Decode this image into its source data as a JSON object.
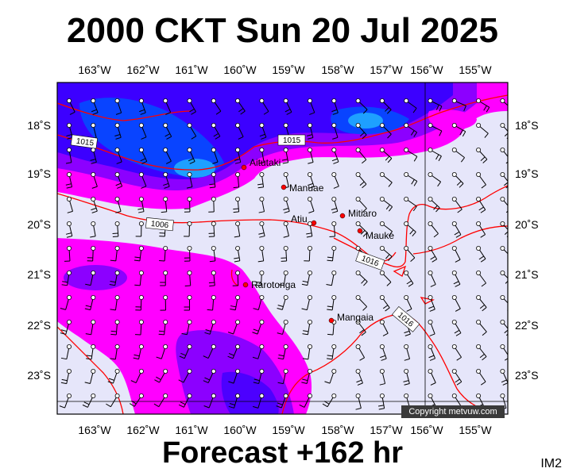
{
  "title": "2000 CKT Sun 20 Jul 2025",
  "subtitle": "Forecast +162 hr",
  "tag": "IM2",
  "copyright": "Copyright metvuw.com",
  "colors": {
    "background": "#e6e6fa",
    "precip_light": "#ff00ff",
    "precip_mid": "#8c00ff",
    "precip_heavy": "#3c00ff",
    "precip_core": "#0050ff",
    "isobar": "#ff0000",
    "town": "#ff0000",
    "barb": "#000000"
  },
  "map": {
    "lon_ticks": [
      "163˚W",
      "162˚W",
      "161˚W",
      "160˚W",
      "159˚W",
      "158˚W",
      "157˚W",
      "156˚W",
      "155˚W"
    ],
    "lat_ticks": [
      "18˚S",
      "19˚S",
      "20˚S",
      "21˚S",
      "22˚S",
      "23˚S"
    ],
    "isobar_labels": [
      "1015",
      "1015",
      "1006",
      "1016",
      "1016"
    ],
    "towns": [
      {
        "name": "Aitutaki"
      },
      {
        "name": "Manuae"
      },
      {
        "name": "Mitiaro"
      },
      {
        "name": "Atiu"
      },
      {
        "name": "Mauke"
      },
      {
        "name": "Rarotonga"
      },
      {
        "name": "Mangaia"
      }
    ]
  }
}
